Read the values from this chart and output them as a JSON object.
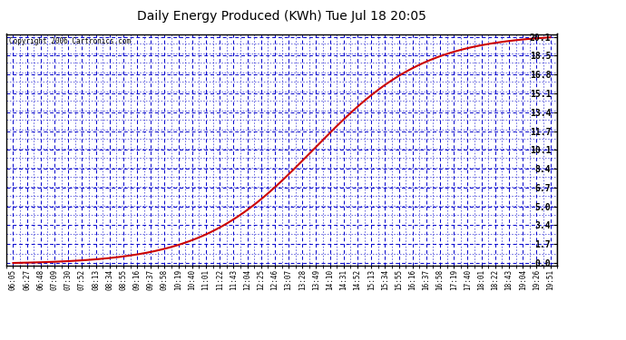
{
  "title": "Daily Energy Produced (KWh) Tue Jul 18 20:05",
  "copyright_text": "Copyright 2006 Cartronics.com",
  "plot_bg_color": "#ffffff",
  "line_color": "#cc0000",
  "grid_color": "#0000cc",
  "yticks": [
    0.0,
    1.7,
    3.4,
    5.0,
    6.7,
    8.4,
    10.1,
    11.7,
    13.4,
    15.1,
    16.8,
    18.5,
    20.1
  ],
  "ymax": 20.1,
  "ymin": -0.2,
  "xtick_labels": [
    "06:05",
    "06:27",
    "06:48",
    "07:09",
    "07:30",
    "07:52",
    "08:13",
    "08:34",
    "08:55",
    "09:16",
    "09:37",
    "09:58",
    "10:19",
    "10:40",
    "11:01",
    "11:22",
    "11:43",
    "12:04",
    "12:25",
    "12:46",
    "13:07",
    "13:28",
    "13:49",
    "14:10",
    "14:31",
    "14:52",
    "15:13",
    "15:34",
    "15:55",
    "16:16",
    "16:37",
    "16:58",
    "17:19",
    "17:40",
    "18:01",
    "18:22",
    "18:43",
    "19:04",
    "19:26",
    "19:51"
  ],
  "sigmoid_midpoint": 0.56,
  "sigmoid_steepness": 9.5,
  "energy_max": 20.1
}
